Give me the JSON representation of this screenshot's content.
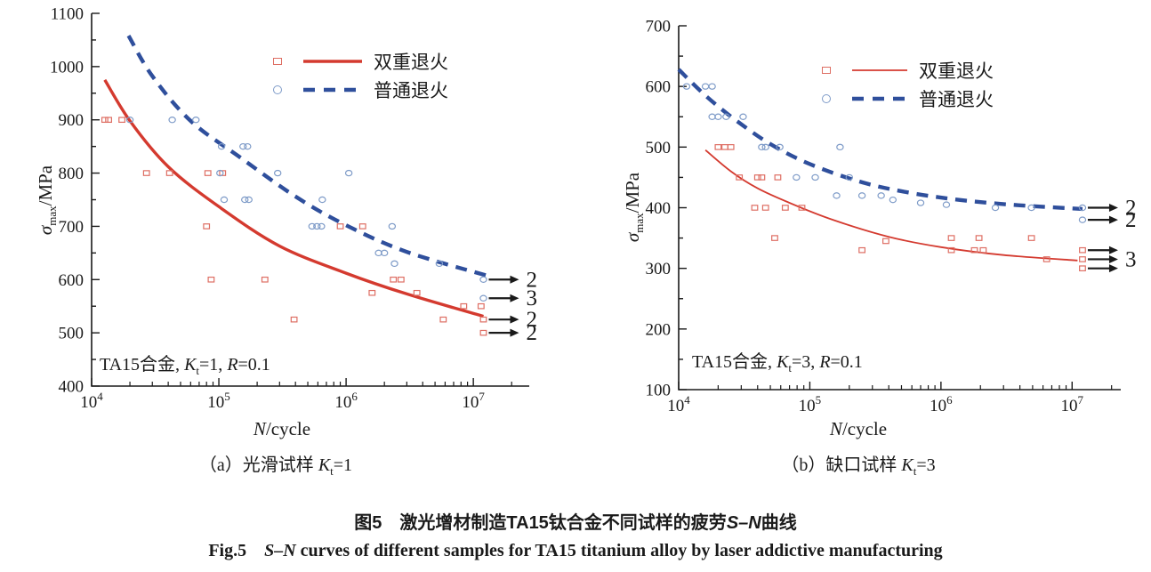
{
  "figure": {
    "caption_zh": {
      "pre": "图5　激光增材制造TA15钛合金不同试样的疲劳",
      "sn": "S–N",
      "post": "曲线"
    },
    "caption_en": {
      "pre": "Fig.5　",
      "sn": "S–N",
      "post": " curves of different samples for TA15 titanium alloy by laser addictive manufacturing"
    }
  },
  "colors": {
    "red_line": "#d43a2f",
    "blue_line": "#2f4f9c",
    "red_marker": "#de6e63",
    "blue_marker": "#7e9bc8",
    "axis": "#1a1a1a",
    "arrow": "#1a1a1a"
  },
  "chart_data": [
    {
      "id": "a",
      "type": "scatter",
      "title_annotation": {
        "alloy": "TA15合金, ",
        "k": "K",
        "k_sub": "t",
        "k_eq": "=1, ",
        "r": "R",
        "r_eq": "=0.1"
      },
      "xlabel": {
        "n": "N",
        "rest": "/cycle"
      },
      "ylabel": {
        "sigma": "σ",
        "sub": "max",
        "rest": "/MPa"
      },
      "subcaption": {
        "pre": "（a）光滑试样 ",
        "k": "K",
        "k_sub": "t",
        "k_eq": "=1"
      },
      "legend": [
        {
          "label": "双重退火",
          "marker": "square",
          "line": "solid"
        },
        {
          "label": "普通退火",
          "marker": "circle",
          "line": "dashed"
        }
      ],
      "x_axis": {
        "scale": "log",
        "min": 10000,
        "max": 27500000,
        "decade_exponents": [
          4,
          5,
          6,
          7
        ],
        "label_base": "10"
      },
      "y_axis": {
        "min": 400,
        "max": 1100,
        "major_step": 100,
        "minor_step": 50
      },
      "series": [
        {
          "name": "双重退火",
          "role": "scatter",
          "marker": "square",
          "color": "red",
          "points": [
            [
              12700,
              900
            ],
            [
              13600,
              900
            ],
            [
              17300,
              900
            ],
            [
              27000,
              800
            ],
            [
              41000,
              800
            ],
            [
              82000,
              800
            ],
            [
              107000,
              800
            ],
            [
              80000,
              700
            ],
            [
              900000,
              700
            ],
            [
              1350000,
              700
            ],
            [
              87000,
              600
            ],
            [
              230000,
              600
            ],
            [
              2350000,
              600
            ],
            [
              2700000,
              600
            ],
            [
              1600000,
              575
            ],
            [
              3600000,
              575
            ],
            [
              390000,
              525
            ],
            [
              5800000,
              525
            ],
            [
              8400000,
              550
            ],
            [
              11500000,
              550
            ]
          ]
        },
        {
          "name": "普通退火",
          "role": "scatter",
          "marker": "circle",
          "color": "blue",
          "points": [
            [
              20000,
              900
            ],
            [
              43000,
              900
            ],
            [
              66000,
              900
            ],
            [
              105000,
              850
            ],
            [
              155000,
              850
            ],
            [
              168000,
              850
            ],
            [
              102000,
              800
            ],
            [
              290000,
              800
            ],
            [
              1050000,
              800
            ],
            [
              110000,
              750
            ],
            [
              160000,
              750
            ],
            [
              172000,
              750
            ],
            [
              650000,
              750
            ],
            [
              540000,
              700
            ],
            [
              590000,
              700
            ],
            [
              640000,
              700
            ],
            [
              2300000,
              700
            ],
            [
              1800000,
              650
            ],
            [
              2000000,
              650
            ],
            [
              2400000,
              630
            ],
            [
              5400000,
              630
            ]
          ]
        },
        {
          "name": "双重退火拟合曲线",
          "role": "curve",
          "style": "solid",
          "color": "red",
          "points": [
            [
              12700,
              975
            ],
            [
              20000,
              898
            ],
            [
              40000,
              812
            ],
            [
              100000,
              737
            ],
            [
              300000,
              663
            ],
            [
              1000000,
              612
            ],
            [
              3000000,
              573
            ],
            [
              12000000,
              531
            ]
          ]
        },
        {
          "name": "普通退火拟合曲线",
          "role": "curve",
          "style": "dashed",
          "color": "blue",
          "points": [
            [
              19500,
              1058
            ],
            [
              30000,
              982
            ],
            [
              60000,
              898
            ],
            [
              150000,
              828
            ],
            [
              400000,
              756
            ],
            [
              1000000,
              702
            ],
            [
              3000000,
              652
            ],
            [
              13000000,
              607
            ]
          ]
        }
      ],
      "runouts": [
        {
          "n": 12000000,
          "sigma": 600,
          "marker": "circle",
          "color": "blue",
          "count": "2"
        },
        {
          "n": 12000000,
          "sigma": 565,
          "marker": "circle",
          "color": "blue",
          "count": "3"
        },
        {
          "n": 12000000,
          "sigma": 525,
          "marker": "square",
          "color": "red",
          "count": "2"
        },
        {
          "n": 12000000,
          "sigma": 500,
          "marker": "square",
          "color": "red",
          "count": "2"
        }
      ]
    },
    {
      "id": "b",
      "type": "scatter",
      "title_annotation": {
        "alloy": "TA15合金, ",
        "k": "K",
        "k_sub": "t",
        "k_eq": "=3, ",
        "r": "R",
        "r_eq": "=0.1"
      },
      "xlabel": {
        "n": "N",
        "rest": "/cycle"
      },
      "ylabel": {
        "sigma": "σ",
        "sub": "max",
        "rest": "/MPa"
      },
      "subcaption": {
        "pre": "（b）缺口试样 ",
        "k": "K",
        "k_sub": "t",
        "k_eq": "=3"
      },
      "legend": [
        {
          "label": "双重退火",
          "marker": "square",
          "line": "solid"
        },
        {
          "label": "普通退火",
          "marker": "circle",
          "line": "dashed"
        }
      ],
      "x_axis": {
        "scale": "log",
        "min": 10000,
        "max": 23500000,
        "decade_exponents": [
          4,
          5,
          6,
          7
        ],
        "label_base": "10"
      },
      "y_axis": {
        "min": 100,
        "max": 700,
        "major_step": 100,
        "minor_step": 50
      },
      "series": [
        {
          "name": "双重退火",
          "role": "scatter",
          "marker": "square",
          "color": "red",
          "points": [
            [
              20000,
              500
            ],
            [
              22500,
              500
            ],
            [
              25000,
              500
            ],
            [
              29000,
              450
            ],
            [
              40000,
              450
            ],
            [
              43000,
              450
            ],
            [
              57000,
              450
            ],
            [
              38000,
              400
            ],
            [
              46000,
              400
            ],
            [
              65000,
              400
            ],
            [
              87000,
              400
            ],
            [
              54000,
              350
            ],
            [
              250000,
              330
            ],
            [
              380000,
              345
            ],
            [
              1200000,
              350
            ],
            [
              1200000,
              330
            ],
            [
              1800000,
              330
            ],
            [
              2100000,
              330
            ],
            [
              1950000,
              350
            ],
            [
              4900000,
              350
            ],
            [
              6400000,
              315
            ]
          ]
        },
        {
          "name": "普通退火",
          "role": "scatter",
          "marker": "circle",
          "color": "blue",
          "points": [
            [
              11500,
              600
            ],
            [
              16000,
              600
            ],
            [
              18000,
              600
            ],
            [
              18000,
              550
            ],
            [
              20000,
              550
            ],
            [
              23000,
              550
            ],
            [
              31000,
              550
            ],
            [
              43000,
              500
            ],
            [
              46000,
              500
            ],
            [
              59000,
              500
            ],
            [
              170000,
              500
            ],
            [
              79000,
              450
            ],
            [
              110000,
              450
            ],
            [
              200000,
              450
            ],
            [
              160000,
              420
            ],
            [
              250000,
              420
            ],
            [
              350000,
              420
            ],
            [
              430000,
              413
            ],
            [
              700000,
              408
            ],
            [
              1100000,
              405
            ],
            [
              2600000,
              400
            ],
            [
              4900000,
              400
            ]
          ]
        },
        {
          "name": "双重退火拟合曲线",
          "role": "curve",
          "style": "solid",
          "color": "red",
          "points": [
            [
              16000,
              495
            ],
            [
              25000,
              460
            ],
            [
              40000,
              432
            ],
            [
              70000,
              408
            ],
            [
              150000,
              380
            ],
            [
              400000,
              352
            ],
            [
              1000000,
              335
            ],
            [
              3000000,
              322
            ],
            [
              11000000,
              313
            ]
          ]
        },
        {
          "name": "普通退火拟合曲线",
          "role": "curve",
          "style": "dashed",
          "color": "blue",
          "points": [
            [
              10000,
              628
            ],
            [
              16000,
              585
            ],
            [
              27000,
              545
            ],
            [
              50000,
              505
            ],
            [
              100000,
              472
            ],
            [
              250000,
              442
            ],
            [
              600000,
              424
            ],
            [
              1500000,
              412
            ],
            [
              4000000,
              404
            ],
            [
              12000000,
              398
            ]
          ]
        }
      ],
      "runouts": [
        {
          "n": 12000000,
          "sigma": 400,
          "marker": "circle",
          "color": "blue",
          "count": "2"
        },
        {
          "n": 12000000,
          "sigma": 380,
          "marker": "circle",
          "color": "blue",
          "count": "2"
        },
        {
          "n": 12000000,
          "sigma": 330,
          "marker": "square",
          "color": "red",
          "count": ""
        },
        {
          "n": 12000000,
          "sigma": 315,
          "marker": "square",
          "color": "red",
          "count": "3"
        },
        {
          "n": 12000000,
          "sigma": 300,
          "marker": "square",
          "color": "red",
          "count": ""
        }
      ]
    }
  ]
}
